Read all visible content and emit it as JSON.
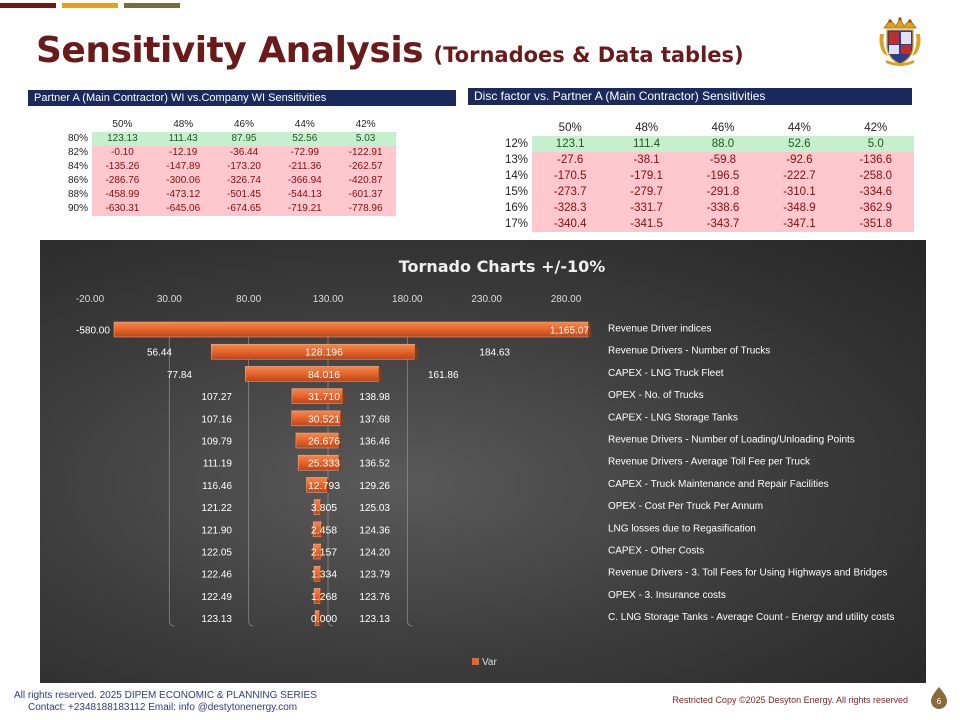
{
  "title": "Sensitivity Analysis",
  "subtitle": "(Tornadoes & Data tables)",
  "colors": {
    "title": "#6b1a1a",
    "header_bg": "#1a2a5c",
    "positive_bg": "#c6efce",
    "negative_bg": "#ffc7ce",
    "bar": "#e8642a"
  },
  "table1": {
    "header": "Partner A (Main Contractor) WI  vs.Company WI Sensitivities",
    "columns": [
      "50%",
      "48%",
      "46%",
      "44%",
      "42%"
    ],
    "rows": [
      {
        "label": "80%",
        "values": [
          "123.13",
          "111.43",
          "87.95",
          "52.56",
          "5.03"
        ]
      },
      {
        "label": "82%",
        "values": [
          "-0.10",
          "-12.19",
          "-36.44",
          "-72.99",
          "-122.91"
        ]
      },
      {
        "label": "84%",
        "values": [
          "-135.26",
          "-147.89",
          "-173.20",
          "-211.36",
          "-262.57"
        ]
      },
      {
        "label": "86%",
        "values": [
          "-286.76",
          "-300.06",
          "-326.74",
          "-366.94",
          "-420.87"
        ]
      },
      {
        "label": "88%",
        "values": [
          "-458.99",
          "-473.12",
          "-501.45",
          "-544.13",
          "-601.37"
        ]
      },
      {
        "label": "90%",
        "values": [
          "-630.31",
          "-645.06",
          "-674.65",
          "-719.21",
          "-778.96"
        ]
      }
    ]
  },
  "table2": {
    "header": "Disc factor vs.  Partner A (Main Contractor) Sensitivities",
    "columns": [
      "50%",
      "48%",
      "46%",
      "44%",
      "42%"
    ],
    "rows": [
      {
        "label": "12%",
        "values": [
          "123.1",
          "111.4",
          "88.0",
          "52.6",
          "5.0"
        ]
      },
      {
        "label": "13%",
        "values": [
          "-27.6",
          "-38.1",
          "-59.8",
          "-92.6",
          "-136.6"
        ]
      },
      {
        "label": "14%",
        "values": [
          "-170.5",
          "-179.1",
          "-196.5",
          "-222.7",
          "-258.0"
        ]
      },
      {
        "label": "15%",
        "values": [
          "-273.7",
          "-279.7",
          "-291.8",
          "-310.1",
          "-334.6"
        ]
      },
      {
        "label": "16%",
        "values": [
          "-328.3",
          "-331.7",
          "-338.6",
          "-348.9",
          "-362.9"
        ]
      },
      {
        "label": "17%",
        "values": [
          "-340.4",
          "-341.5",
          "-343.7",
          "-347.1",
          "-351.8"
        ]
      }
    ]
  },
  "chart_data": {
    "type": "bar",
    "orientation": "horizontal-tornado",
    "title": "Tornado Charts +/-10%",
    "x_ticks": [
      "-20.00",
      "30.00",
      "80.00",
      "130.00",
      "180.00",
      "230.00",
      "280.00"
    ],
    "legend": [
      "Var"
    ],
    "legend_position": "bottom",
    "bars": [
      {
        "name": "Revenue Driver indices",
        "low": -580.0,
        "high": 1165.07,
        "low_label": "-580.00",
        "high_label": "1,165.07",
        "var_label": ""
      },
      {
        "name": "Revenue Drivers -     Number of Trucks",
        "low": 56.44,
        "high": 184.63,
        "low_label": "56.44",
        "high_label": "184.63",
        "var_label": "128.196"
      },
      {
        "name": "CAPEX  - LNG Truck Fleet",
        "low": 77.84,
        "high": 161.86,
        "low_label": "77.84",
        "high_label": "161.86",
        "var_label": "84.016"
      },
      {
        "name": "OPEX  - No. of Trucks",
        "low": 107.27,
        "high": 138.98,
        "low_label": "107.27",
        "high_label": "138.98",
        "var_label": "31.710"
      },
      {
        "name": "CAPEX  - LNG Storage Tanks",
        "low": 107.16,
        "high": 137.68,
        "low_label": "107.16",
        "high_label": "137.68",
        "var_label": "30.521"
      },
      {
        "name": "Revenue Drivers -     Number of Loading/Unloading Points",
        "low": 109.79,
        "high": 136.46,
        "low_label": "109.79",
        "high_label": "136.46",
        "var_label": "26.676"
      },
      {
        "name": "Revenue Drivers -    Average Toll Fee per Truck",
        "low": 111.19,
        "high": 136.52,
        "low_label": "111.19",
        "high_label": "136.52",
        "var_label": "25.333"
      },
      {
        "name": "CAPEX  - Truck Maintenance and Repair Facilities",
        "low": 116.46,
        "high": 129.26,
        "low_label": "116.46",
        "high_label": "129.26",
        "var_label": "12.793"
      },
      {
        "name": "OPEX  - Cost Per Truck Per Annum",
        "low": 121.22,
        "high": 125.03,
        "low_label": "121.22",
        "high_label": "125.03",
        "var_label": "3.805"
      },
      {
        "name": "LNG losses due to Regasification",
        "low": 121.9,
        "high": 124.36,
        "low_label": "121.90",
        "high_label": "124.36",
        "var_label": "2.458"
      },
      {
        "name": "CAPEX  - Other Costs",
        "low": 122.05,
        "high": 124.2,
        "low_label": "122.05",
        "high_label": "124.20",
        "var_label": "2.157"
      },
      {
        "name": "Revenue Drivers  - 3. Toll Fees for Using Highways and Bridges",
        "low": 122.46,
        "high": 123.79,
        "low_label": "122.46",
        "high_label": "123.79",
        "var_label": "1.334"
      },
      {
        "name": "OPEX  - 3. Insurance costs",
        "low": 122.49,
        "high": 123.76,
        "low_label": "122.49",
        "high_label": "123.76",
        "var_label": "1.268"
      },
      {
        "name": "C. LNG Storage Tanks  - Average Count - Energy and utility costs",
        "low": 123.13,
        "high": 123.13,
        "low_label": "123.13",
        "high_label": "123.13",
        "var_label": "0.000"
      }
    ]
  },
  "footer": {
    "line1": "All rights reserved. 2025 DIPEM ECONOMIC & PLANNING SERIES",
    "line2": "Contact: +2348188183112  Email:  info @destytonenergy.com",
    "copyright": "Restricted  Copy  ©2025 Desyton Energy. All rights reserved",
    "page": "6"
  }
}
